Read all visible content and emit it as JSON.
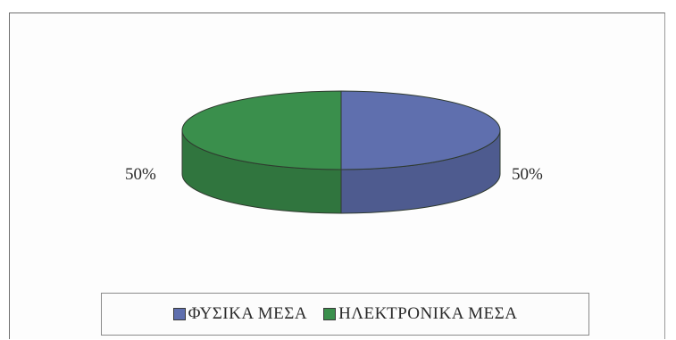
{
  "chart_data": {
    "type": "pie",
    "categories": [
      "ΦΥΣΙΚΑ ΜΕΣΑ",
      "ΗΛΕΚΤΡΟΝΙΚΑ ΜΕΣΑ"
    ],
    "values": [
      50,
      50
    ],
    "data_labels": [
      "50%",
      "50%"
    ],
    "colors": [
      "#5f6fae",
      "#3a8f4c"
    ],
    "style": "3d",
    "legend_position": "bottom"
  }
}
